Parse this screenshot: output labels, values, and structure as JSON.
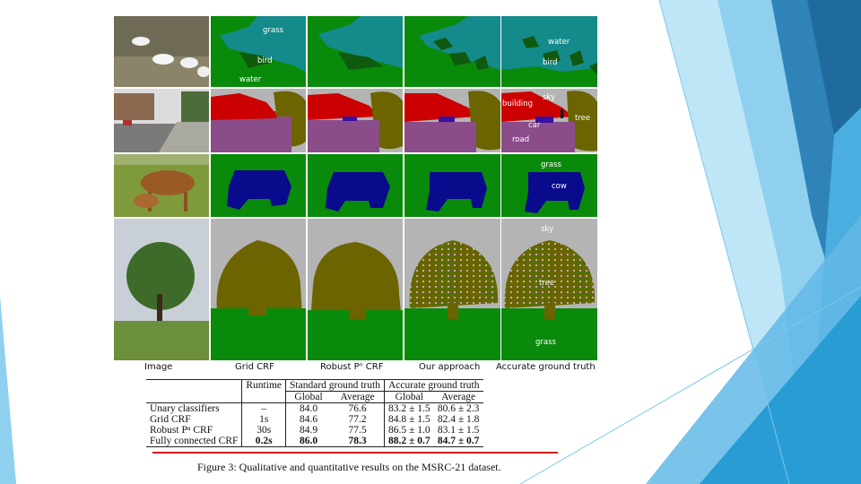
{
  "columns": [
    "Image",
    "Grid CRF",
    "Robust Pⁿ CRF",
    "Our approach",
    "Accurate ground truth"
  ],
  "labels": {
    "row1": [
      "grass",
      "bird",
      "water",
      "water",
      "bird"
    ],
    "row2": [
      "sky",
      "building",
      "car",
      "tree",
      "road"
    ],
    "row3": [
      "grass",
      "cow"
    ],
    "row4": [
      "sky",
      "tree",
      "grass"
    ]
  },
  "table": {
    "header_runtime": "Runtime",
    "header_standard": "Standard ground truth",
    "header_accurate": "Accurate ground truth",
    "sub_global": "Global",
    "sub_average": "Average",
    "rows": [
      {
        "method": "Unary classifiers",
        "runtime": "–",
        "std_global": "84.0",
        "std_average": "76.6",
        "acc_global": "83.2 ± 1.5",
        "acc_average": "80.6 ± 2.3"
      },
      {
        "method": "Grid CRF",
        "runtime": "1s",
        "std_global": "84.6",
        "std_average": "77.2",
        "acc_global": "84.8 ± 1.5",
        "acc_average": "82.4 ± 1.8"
      },
      {
        "method": "Robust Pⁿ CRF",
        "runtime": "30s",
        "std_global": "84.9",
        "std_average": "77.5",
        "acc_global": "86.5 ± 1.0",
        "acc_average": "83.1 ± 1.5"
      },
      {
        "method": "Fully connected CRF",
        "runtime": "0.2s",
        "std_global": "86.0",
        "std_average": "78.3",
        "acc_global": "88.2 ± 0.7",
        "acc_average": "84.7 ± 0.7"
      }
    ]
  },
  "caption": "Figure 3: Qualitative and quantitative results on the MSRC-21 dataset.",
  "colors": {
    "water": "#148a8a",
    "grass": "#0a8a0a",
    "bird": "#0f5a0f",
    "building": "#cc0000",
    "sky": "#b4b4b4",
    "car": "#3a10a0",
    "tree": "#6b6400",
    "road": "#8a4d8a",
    "cow": "#0a0a8c",
    "accent_blue": "#2e9fd8",
    "underline_red": "#d41a1a"
  }
}
